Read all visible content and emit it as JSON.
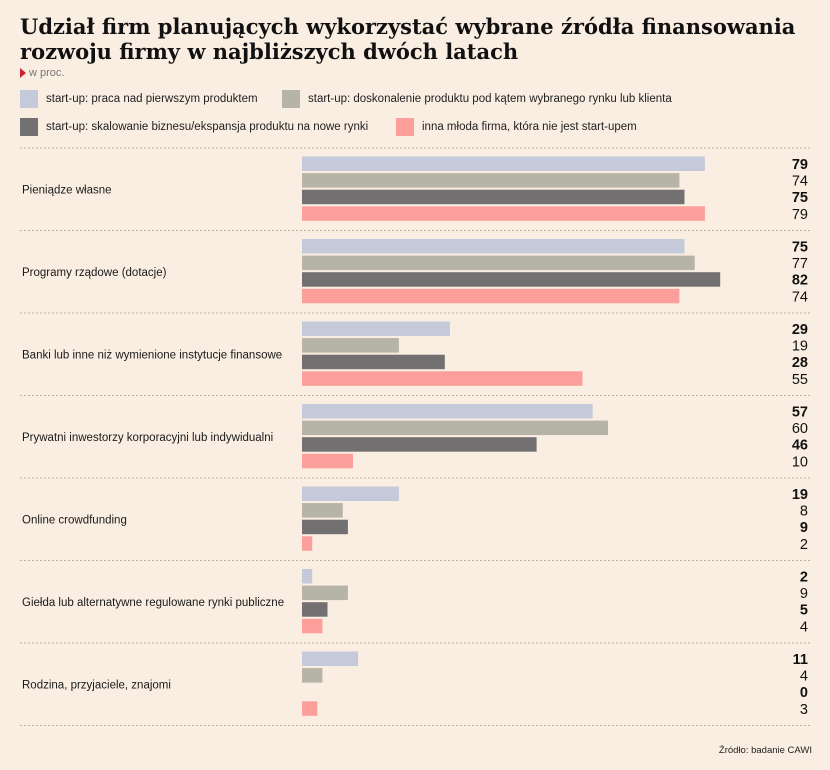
{
  "title": "Udział firm planujących wykorzystać wybrane źródła finansowania rozwoju firmy w najbliższych dwóch latach",
  "subtitle": "w proc.",
  "source": "Źródło: badanie CAWI",
  "colors": {
    "background": "#faeee2",
    "series": [
      "#c5cadb",
      "#b6b3a7",
      "#727070",
      "#fc9e9a"
    ],
    "accent": "#d0202f"
  },
  "chart_data": {
    "type": "bar",
    "orientation": "horizontal",
    "title": "Udział firm planujących wykorzystać wybrane źródła finansowania rozwoju firmy w najbliższych dwóch latach",
    "unit": "w proc.",
    "xlim": [
      0,
      100
    ],
    "grid": false,
    "legend_position": "top",
    "categories": [
      "Pieniądze własne",
      "Programy rządowe (dotacje)",
      "Banki lub inne niż wymienione instytucje finansowe",
      "Prywatni inwestorzy korporacyjni lub indywidualni",
      "Online crowdfunding",
      "Giełda lub alternatywne regulowane rynki publiczne",
      "Rodzina, przyjaciele, znajomi"
    ],
    "series": [
      {
        "name": "start-up: praca nad pierwszym produktem",
        "color": "#c5cadb",
        "bold_label": true,
        "values": [
          79,
          75,
          29,
          57,
          19,
          2,
          11
        ]
      },
      {
        "name": "start-up: doskonalenie produktu pod kątem wybranego rynku lub klienta",
        "color": "#b6b3a7",
        "bold_label": false,
        "values": [
          74,
          77,
          19,
          60,
          8,
          9,
          4
        ]
      },
      {
        "name": "start-up: skalowanie biznesu/ekspansja produktu na nowe rynki",
        "color": "#727070",
        "bold_label": true,
        "values": [
          75,
          82,
          28,
          46,
          9,
          5,
          0
        ]
      },
      {
        "name": "inna młoda firma, która nie jest start-upem",
        "color": "#fc9e9a",
        "bold_label": false,
        "values": [
          79,
          74,
          55,
          10,
          2,
          4,
          3
        ]
      }
    ]
  }
}
